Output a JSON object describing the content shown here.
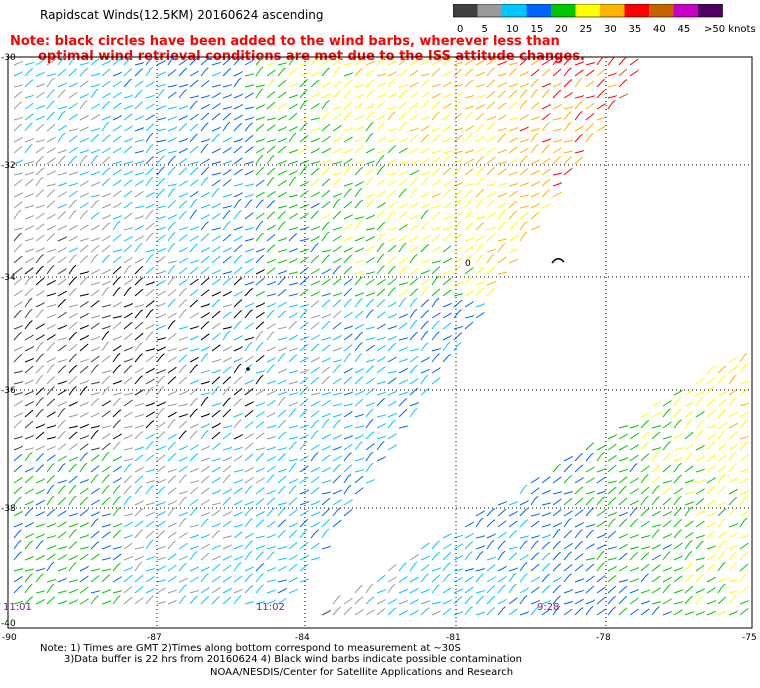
{
  "header": {
    "title": "Rapidscat Winds(12.5KM) 20160624 ascending"
  },
  "note": {
    "line1": "Note: black circles have been added to the wind barbs, wherever less than",
    "line2": "optimal wind retrieval conditions are met due to the ISS attitude changes."
  },
  "legend": {
    "ticks": [
      "0",
      "5",
      "10",
      "15",
      "20",
      "25",
      "30",
      "35",
      "40",
      "45",
      ">50 knots"
    ],
    "colors": [
      "#404040",
      "#9a9a9a",
      "#00c8ff",
      "#0064ff",
      "#00c800",
      "#ffff00",
      "#ffb400",
      "#ff0000",
      "#c86400",
      "#c800c8",
      "#500064"
    ]
  },
  "map": {
    "lat_labels": [
      "-30",
      "-32",
      "-34",
      "-36",
      "-38",
      "-40"
    ],
    "lon_labels": [
      "-90",
      "-87",
      "-84",
      "-81",
      "-78",
      "-75"
    ],
    "time_labels": [
      "11:01",
      "11:02",
      "9:28"
    ],
    "marker_label": "0"
  },
  "footer": {
    "note_line1": "Note: 1) Times are GMT 2)Times along bottom correspond to measurement at ~30S",
    "note_line2": "3)Data buffer is 22 hrs from 20160624 4) Black wind barbs indicate possible contamination",
    "credit": "NOAA/NESDIS/Center for Satellite Applications and Research"
  }
}
